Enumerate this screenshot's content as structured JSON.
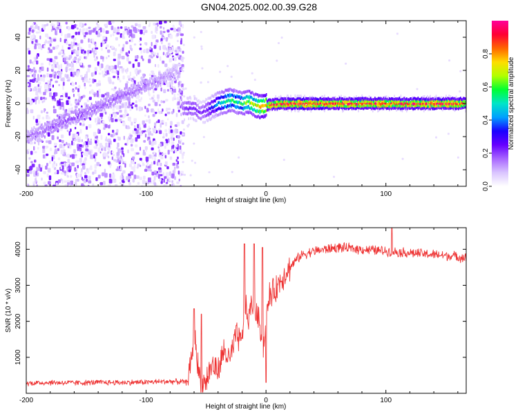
{
  "title": "GN04.2025.002.00.39.G28",
  "colors": {
    "snr_line": "#ee3333",
    "axis": "#000000",
    "colormap": [
      "#ffffff",
      "#d9c4ff",
      "#a866ff",
      "#6600ff",
      "#1a00ff",
      "#00a0ff",
      "#00e5c8",
      "#00ff33",
      "#b2ff00",
      "#ffdd00",
      "#ff6600",
      "#ff0033",
      "#ff0099"
    ]
  },
  "chart_data": [
    {
      "type": "heatmap",
      "name": "spectrogram",
      "xlabel": "Height of straight line (km)",
      "ylabel": "Frequency (Hz)",
      "xlim": [
        -200,
        167
      ],
      "ylim": [
        -50,
        50
      ],
      "xticks": [
        -200,
        -100,
        0,
        100
      ],
      "xtick_labels": [
        "-200",
        "-100",
        "0",
        "100"
      ],
      "yticks": [
        -40,
        -20,
        0,
        20,
        40
      ],
      "ytick_labels": [
        "-40",
        "-20",
        "0",
        "20",
        "40"
      ],
      "colorbar": {
        "label": "Normalized spectral amplitude",
        "range": [
          0,
          1
        ],
        "ticks": [
          0.0,
          0.2,
          0.4,
          0.6,
          0.8
        ],
        "tick_labels": [
          "0.0",
          "0.2",
          "0.4",
          "0.6",
          "0.8"
        ]
      },
      "ridge": {
        "x": [
          -200,
          -180,
          -160,
          -140,
          -120,
          -100,
          -90,
          -80,
          -75,
          -70,
          -60,
          -55,
          -50,
          -45,
          -40,
          -35,
          -30,
          -25,
          -20,
          -15,
          -10,
          -5,
          0,
          10,
          20,
          60,
          100,
          140,
          167
        ],
        "y": [
          -20,
          -14,
          -8,
          -2,
          5,
          11,
          14,
          18,
          21,
          -3,
          -3,
          -6,
          -4,
          -2,
          0,
          1,
          2,
          1,
          0,
          1,
          -1,
          -2,
          -1,
          0,
          0,
          0,
          0,
          0,
          0
        ],
        "amplitude": [
          0.15,
          0.18,
          0.2,
          0.18,
          0.18,
          0.15,
          0.15,
          0.12,
          0.1,
          0.2,
          0.25,
          0.2,
          0.25,
          0.35,
          0.45,
          0.55,
          0.6,
          0.55,
          0.6,
          0.7,
          0.7,
          0.85,
          0.9,
          0.95,
          1.0,
          0.95,
          0.95,
          0.95,
          0.95
        ]
      },
      "noise_region_x": [
        -200,
        -70
      ]
    },
    {
      "type": "line",
      "name": "snr",
      "xlabel": "Height of straight line (km)",
      "ylabel": "SNR (10 * v/v)",
      "xlim": [
        -200,
        167
      ],
      "ylim": [
        0,
        4600
      ],
      "xticks": [
        -200,
        -100,
        0,
        100
      ],
      "xtick_labels": [
        "-200",
        "-100",
        "0",
        "100"
      ],
      "yticks": [
        1000,
        2000,
        3000,
        4000
      ],
      "ytick_labels": [
        "1000",
        "2000",
        "3000",
        "4000"
      ],
      "x": [
        -200,
        -180,
        -160,
        -140,
        -120,
        -100,
        -80,
        -70,
        -66,
        -62,
        -60,
        -57,
        -54,
        -50,
        -45,
        -40,
        -35,
        -30,
        -25,
        -20,
        -18,
        -15,
        -12,
        -8,
        -5,
        -2,
        0,
        3,
        6,
        10,
        15,
        20,
        25,
        30,
        40,
        50,
        60,
        80,
        100,
        120,
        140,
        160,
        167
      ],
      "y": [
        280,
        300,
        290,
        300,
        300,
        310,
        330,
        320,
        300,
        900,
        1800,
        800,
        200,
        350,
        800,
        600,
        1200,
        900,
        1600,
        1400,
        2600,
        2000,
        2500,
        2200,
        1900,
        1300,
        2000,
        2700,
        2800,
        3000,
        3300,
        3500,
        3700,
        3850,
        3950,
        4000,
        4050,
        4000,
        3950,
        3900,
        3850,
        3800,
        3750
      ],
      "spikes": [
        {
          "x": -60,
          "y": 2350
        },
        {
          "x": -54,
          "y": 2200
        },
        {
          "x": -18,
          "y": 4150
        },
        {
          "x": -10,
          "y": 4150
        },
        {
          "x": -3,
          "y": 4050
        },
        {
          "x": 0,
          "y": 300
        },
        {
          "x": 105,
          "y": 4600
        }
      ]
    }
  ]
}
